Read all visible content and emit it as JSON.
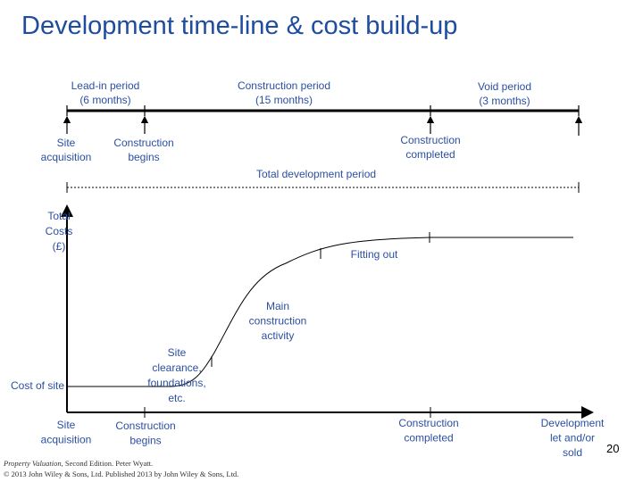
{
  "header": {
    "title": "Development time-line & cost build-up"
  },
  "timeline": {
    "periods": [
      {
        "lines": [
          "Lead-in period",
          "(6 months)"
        ]
      },
      {
        "lines": [
          "Construction period",
          "(15 months)"
        ]
      },
      {
        "lines": [
          "Void period",
          "(3 months)"
        ]
      }
    ],
    "markers": [
      {
        "lines": [
          "Site",
          "acquisition"
        ]
      },
      {
        "lines": [
          "Construction",
          "begins"
        ]
      },
      {
        "lines": [
          "Construction",
          "completed"
        ]
      }
    ],
    "total": "Total development period"
  },
  "graph": {
    "y_label": [
      "Total",
      "Costs",
      "(£)"
    ],
    "cost_of_site": "Cost of site",
    "annotations": [
      {
        "lines": [
          "Site",
          "clearance,",
          "foundations,",
          "etc."
        ]
      },
      {
        "lines": [
          "Main",
          "construction",
          "activity"
        ]
      },
      {
        "lines": [
          "Fitting out"
        ]
      }
    ],
    "x_labels": [
      {
        "lines": [
          "Site",
          "acquisition"
        ]
      },
      {
        "lines": [
          "Construction",
          "begins"
        ]
      },
      {
        "lines": [
          "Construction",
          "completed"
        ]
      },
      {
        "lines": [
          "Development",
          "let and/or",
          "sold"
        ]
      }
    ]
  },
  "footer": {
    "page": "20",
    "book_title": "Property Valuation",
    "book_rest": ", Second Edition. Peter Wyatt.",
    "copyright": "© 2013 John Wiley & Sons, Ltd. Published 2013 by John Wiley & Sons, Ltd."
  }
}
